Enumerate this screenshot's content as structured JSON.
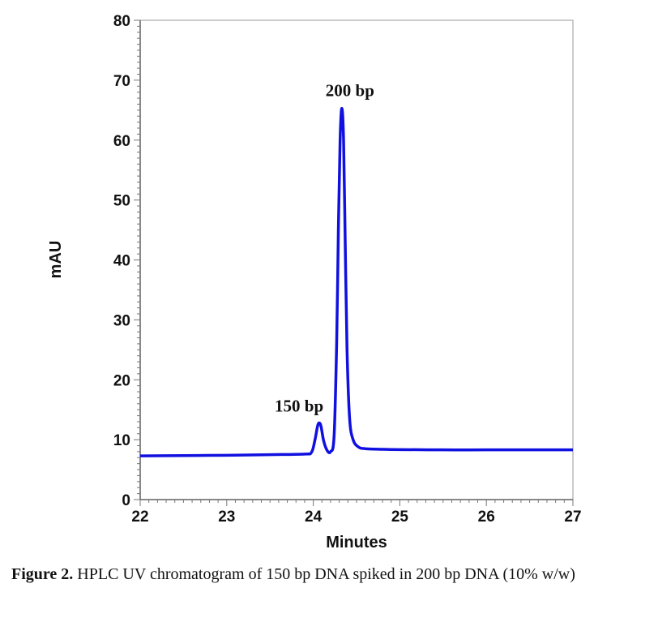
{
  "chart_data": {
    "type": "line",
    "title": "",
    "xlabel": "Minutes",
    "ylabel": "mAU",
    "xlim": [
      22,
      27
    ],
    "ylim": [
      0,
      80
    ],
    "x_ticks": [
      "22",
      "23",
      "24",
      "25",
      "26",
      "27"
    ],
    "y_ticks": [
      "0",
      "10",
      "20",
      "30",
      "40",
      "50",
      "60",
      "70",
      "80"
    ],
    "grid": false,
    "line_color": "#1010e0",
    "series": [
      {
        "x": [
          22.0,
          22.5,
          23.0,
          23.5,
          23.9,
          23.98,
          24.02,
          24.05,
          24.07,
          24.09,
          24.12,
          24.16,
          24.2,
          24.24,
          24.27,
          24.29,
          24.31,
          24.33,
          24.35,
          24.37,
          24.39,
          24.42,
          24.46,
          24.52,
          24.6,
          24.8,
          25.0,
          25.5,
          26.0,
          26.5,
          27.0
        ],
        "y": [
          7.3,
          7.35,
          7.4,
          7.5,
          7.6,
          7.9,
          10.0,
          12.3,
          12.8,
          12.2,
          9.8,
          8.2,
          8.0,
          10.5,
          26.0,
          45.0,
          60.0,
          65.3,
          60.0,
          42.0,
          25.0,
          13.5,
          10.0,
          8.8,
          8.5,
          8.4,
          8.35,
          8.3,
          8.3,
          8.3,
          8.3
        ]
      }
    ],
    "annotations": [
      {
        "text": "200 bp",
        "x": 24.33,
        "y": 65.3
      },
      {
        "text": "150 bp",
        "x": 24.07,
        "y": 12.8
      }
    ]
  },
  "caption": {
    "label": "Figure 2.",
    "text": " HPLC UV chromatogram of 150 bp DNA spiked in 200 bp DNA (10% w/w)"
  }
}
